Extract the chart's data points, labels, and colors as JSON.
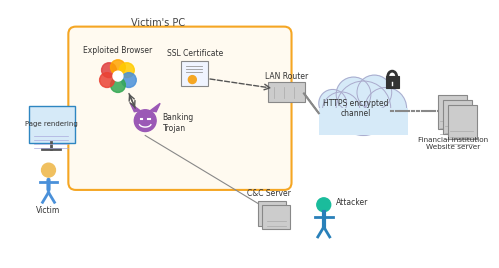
{
  "bg_color": "#ffffff",
  "box_color": "#f5a623",
  "box_fill": "#fffaf0",
  "cloud_fill": "#d6eaf8",
  "title": "Victim's PC",
  "labels": {
    "exploited_browser": "Exploited Browser",
    "ssl_cert": "SSL Certificate",
    "banking_trojan": "Banking\nTrojan",
    "page_rendering": "Page rendering",
    "victim": "Victim",
    "lan_router": "LAN Router",
    "https": "HTTPS encrypted\nchannel",
    "financial": "Financial Institution\nWebsite server",
    "cc_server": "C&C Server",
    "attacker": "Attacker"
  },
  "font_size": 6,
  "fig_width": 4.99,
  "fig_height": 2.68,
  "dpi": 100
}
